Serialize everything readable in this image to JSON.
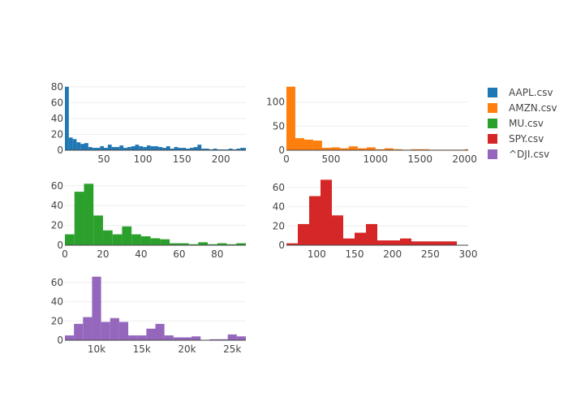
{
  "chart_data": [
    {
      "type": "bar",
      "name": "AAPL.csv",
      "color": "#1f77b4",
      "xlim": [
        0,
        232
      ],
      "ylim": [
        0,
        85
      ],
      "xticks": [
        50,
        100,
        150,
        200
      ],
      "yticks": [
        0,
        20,
        40,
        60,
        80
      ],
      "bin_start": 0,
      "bin_width": 5,
      "values": [
        80,
        16,
        14,
        10,
        8,
        9,
        4,
        3,
        3,
        5,
        3,
        7,
        4,
        4,
        6,
        3,
        4,
        5,
        7,
        5,
        4,
        6,
        5,
        5,
        4,
        3,
        5,
        2,
        4,
        3,
        3,
        2,
        3,
        4,
        7,
        2,
        2,
        1,
        2,
        1,
        1,
        1,
        2,
        1,
        2,
        3,
        3
      ]
    },
    {
      "type": "bar",
      "name": "AMZN.csv",
      "color": "#ff7f0e",
      "xlim": [
        0,
        2040
      ],
      "ylim": [
        0,
        140
      ],
      "xticks": [
        0,
        500,
        1000,
        1500,
        2000
      ],
      "yticks": [
        0,
        50,
        100
      ],
      "bin_start": 0,
      "bin_width": 100,
      "values": [
        132,
        25,
        22,
        20,
        5,
        6,
        4,
        8,
        4,
        6,
        2,
        4,
        2,
        1,
        2,
        2,
        1,
        1,
        1,
        1,
        2
      ]
    },
    {
      "type": "bar",
      "name": "MU.csv",
      "color": "#2ca02c",
      "xlim": [
        0,
        95
      ],
      "ylim": [
        0,
        68
      ],
      "xticks": [
        0,
        20,
        40,
        60,
        80
      ],
      "yticks": [
        0,
        20,
        40,
        60
      ],
      "bin_start": 0,
      "bin_width": 5,
      "values": [
        11,
        54,
        62,
        30,
        15,
        11,
        19,
        11,
        9,
        7,
        6,
        2,
        2,
        1,
        3,
        1,
        2,
        1,
        2
      ]
    },
    {
      "type": "bar",
      "name": "SPY.csv",
      "color": "#d62728",
      "xlim": [
        60,
        300
      ],
      "ylim": [
        0,
        70
      ],
      "xticks": [
        100,
        150,
        200,
        250,
        300
      ],
      "yticks": [
        0,
        20,
        40,
        60
      ],
      "bin_start": 60,
      "bin_width": 15,
      "values": [
        2,
        22,
        51,
        68,
        31,
        7,
        13,
        22,
        5,
        5,
        7,
        4,
        4,
        4,
        4
      ]
    },
    {
      "type": "bar",
      "name": "^DJI.csv",
      "color": "#9467bd",
      "xlim": [
        6500,
        26500
      ],
      "ylim": [
        0,
        70
      ],
      "xticks": [
        10000,
        15000,
        20000,
        25000
      ],
      "xticklabels": [
        "10k",
        "15k",
        "20k",
        "25k"
      ],
      "yticks": [
        0,
        20,
        40,
        60
      ],
      "bin_start": 6500,
      "bin_width": 1000,
      "values": [
        5,
        17,
        24,
        66,
        19,
        23,
        19,
        5,
        5,
        12,
        17,
        5,
        3,
        3,
        4,
        0,
        1,
        1,
        6,
        4,
        2
      ]
    }
  ],
  "legend": {
    "placement": "top-right",
    "items": [
      {
        "label": "AAPL.csv",
        "color": "#1f77b4"
      },
      {
        "label": "AMZN.csv",
        "color": "#ff7f0e"
      },
      {
        "label": "MU.csv",
        "color": "#2ca02c"
      },
      {
        "label": "SPY.csv",
        "color": "#d62728"
      },
      {
        "label": "^DJI.csv",
        "color": "#9467bd"
      }
    ]
  }
}
